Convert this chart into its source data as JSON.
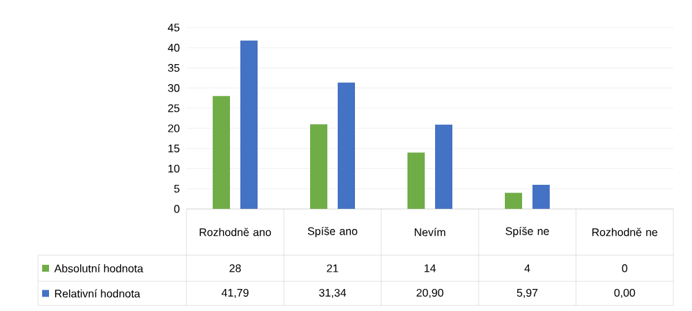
{
  "chart_data": {
    "type": "bar",
    "categories": [
      "Rozhodně ano",
      "Spíše ano",
      "Nevím",
      "Spíše ne",
      "Rozhodně ne"
    ],
    "series": [
      {
        "name": "Absolutní hodnota",
        "color": "#70ad47",
        "values": [
          28,
          21,
          14,
          4,
          0
        ],
        "value_labels": [
          "28",
          "21",
          "14",
          "4",
          "0"
        ]
      },
      {
        "name": "Relativní hodnota",
        "color": "#4472c4",
        "values": [
          41.79,
          31.34,
          20.9,
          5.97,
          0.0
        ],
        "value_labels": [
          "41,79",
          "31,34",
          "20,90",
          "5,97",
          "0,00"
        ]
      }
    ],
    "ylim": [
      0,
      45
    ],
    "yticks": [
      0,
      5,
      10,
      15,
      20,
      25,
      30,
      35,
      40,
      45
    ],
    "grid": "y",
    "legend": "bottom"
  }
}
